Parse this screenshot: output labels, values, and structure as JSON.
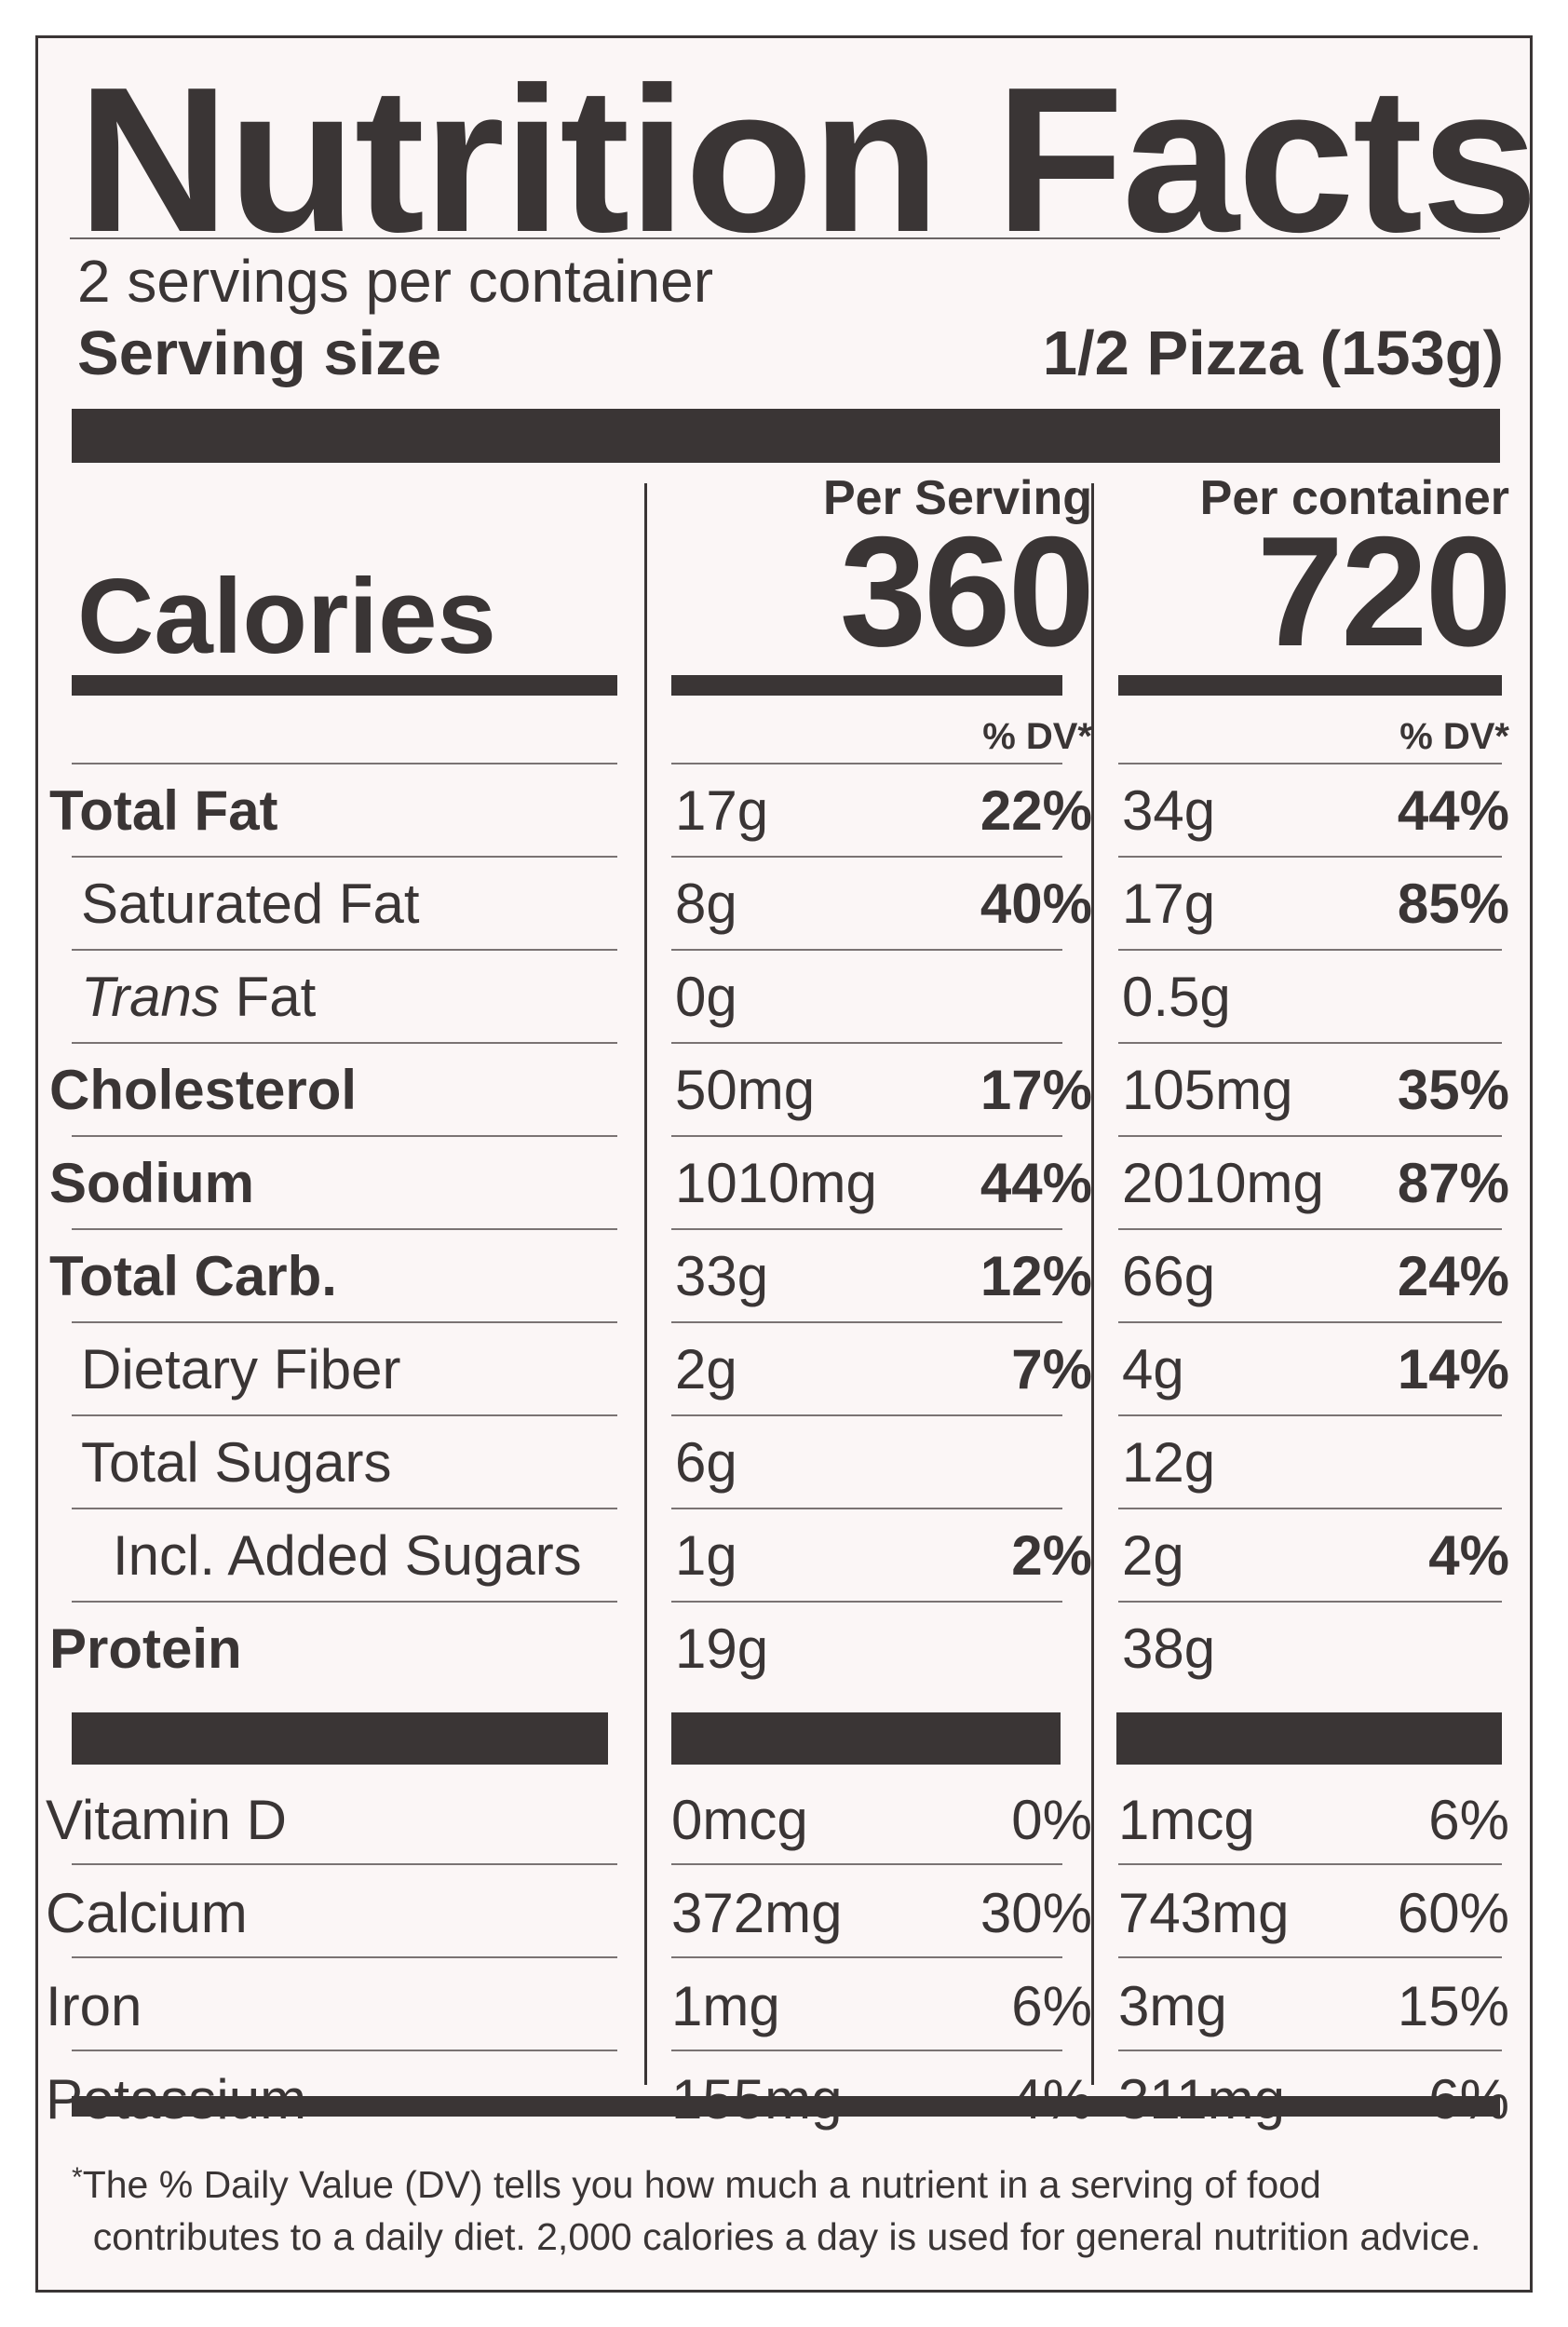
{
  "title": "Nutrition Facts",
  "servings_per_container": "2 servings per container",
  "serving_size": {
    "label": "Serving size",
    "value": "1/2 Pizza (153g)"
  },
  "calories": {
    "label": "Calories",
    "per_serving_header": "Per Serving",
    "per_container_header": "Per container",
    "per_serving": "360",
    "per_container": "720"
  },
  "dv_header": "% DV*",
  "nutrients": [
    {
      "name_pre": "",
      "name_italic": "",
      "name": "Total Fat",
      "bold": true,
      "indent": 0,
      "s_amt": "17g",
      "s_dv": "22%",
      "c_amt": "34g",
      "c_dv": "44%"
    },
    {
      "name_pre": "",
      "name_italic": "",
      "name": "Saturated Fat",
      "bold": false,
      "indent": 1,
      "s_amt": "8g",
      "s_dv": "40%",
      "c_amt": "17g",
      "c_dv": "85%"
    },
    {
      "name_pre": "",
      "name_italic": "Trans",
      "name": " Fat",
      "bold": false,
      "indent": 1,
      "s_amt": "0g",
      "s_dv": "",
      "c_amt": "0.5g",
      "c_dv": ""
    },
    {
      "name_pre": "",
      "name_italic": "",
      "name": "Cholesterol",
      "bold": true,
      "indent": 0,
      "s_amt": "50mg",
      "s_dv": "17%",
      "c_amt": "105mg",
      "c_dv": "35%"
    },
    {
      "name_pre": "",
      "name_italic": "",
      "name": "Sodium",
      "bold": true,
      "indent": 0,
      "s_amt": "1010mg",
      "s_dv": "44%",
      "c_amt": "2010mg",
      "c_dv": "87%"
    },
    {
      "name_pre": "",
      "name_italic": "",
      "name": "Total Carb.",
      "bold": true,
      "indent": 0,
      "s_amt": "33g",
      "s_dv": "12%",
      "c_amt": "66g",
      "c_dv": "24%"
    },
    {
      "name_pre": "",
      "name_italic": "",
      "name": "Dietary Fiber",
      "bold": false,
      "indent": 1,
      "s_amt": "2g",
      "s_dv": "7%",
      "c_amt": "4g",
      "c_dv": "14%"
    },
    {
      "name_pre": "",
      "name_italic": "",
      "name": "Total Sugars",
      "bold": false,
      "indent": 1,
      "s_amt": "6g",
      "s_dv": "",
      "c_amt": "12g",
      "c_dv": ""
    },
    {
      "name_pre": "",
      "name_italic": "",
      "name": "Incl. Added Sugars",
      "bold": false,
      "indent": 2,
      "s_amt": "1g",
      "s_dv": "2%",
      "c_amt": "2g",
      "c_dv": "4%"
    },
    {
      "name_pre": "",
      "name_italic": "",
      "name": "Protein",
      "bold": true,
      "indent": 0,
      "s_amt": "19g",
      "s_dv": "",
      "c_amt": "38g",
      "c_dv": ""
    }
  ],
  "vitamins": [
    {
      "name": "Vitamin D",
      "s_amt": "0mcg",
      "s_dv": "0%",
      "c_amt": "1mcg",
      "c_dv": "6%"
    },
    {
      "name": "Calcium",
      "s_amt": "372mg",
      "s_dv": "30%",
      "c_amt": "743mg",
      "c_dv": "60%"
    },
    {
      "name": "Iron",
      "s_amt": "1mg",
      "s_dv": "6%",
      "c_amt": "3mg",
      "c_dv": "15%"
    },
    {
      "name": "Potassium",
      "s_amt": "155mg",
      "s_dv": "4%",
      "c_amt": "311mg",
      "c_dv": "6%"
    }
  ],
  "footnote": {
    "star": "*",
    "line1": "The % Daily Value (DV) tells you how much a nutrient in a serving of food",
    "line2": "contributes to a daily diet. 2,000 calories a day is used for general nutrition advice."
  }
}
